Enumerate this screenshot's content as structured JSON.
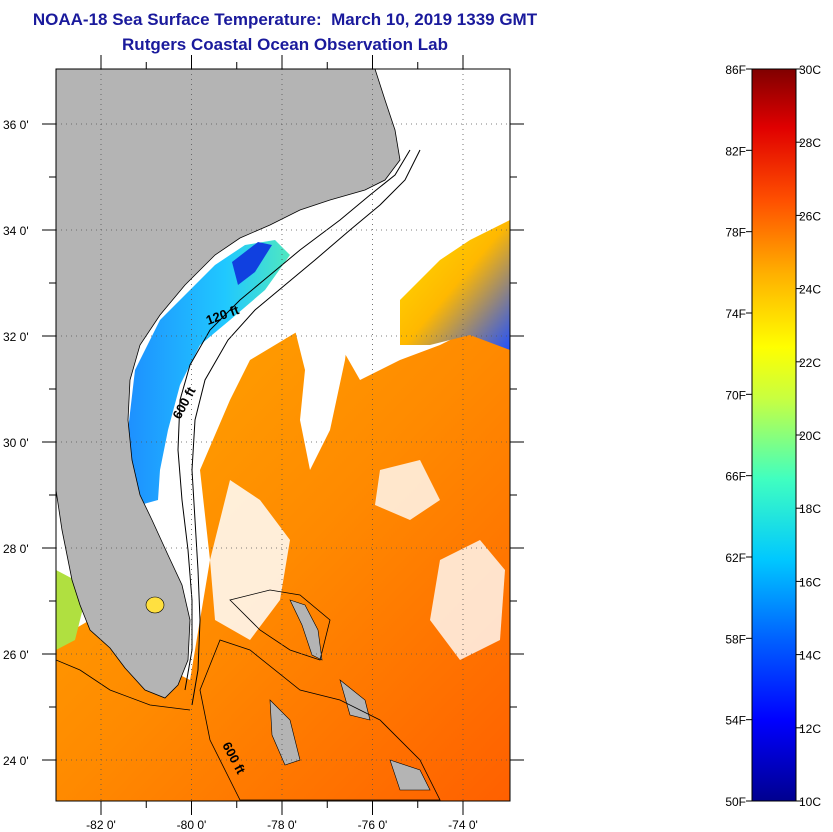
{
  "header": {
    "title": "NOAA-18 Sea Surface Temperature:  March 10, 2019 1339 GMT",
    "subtitle": "Rutgers Coastal Ocean Observation Lab"
  },
  "map": {
    "lat_ticks": [
      "36 0'",
      "34 0'",
      "32 0'",
      "30 0'",
      "28 0'",
      "26 0'",
      "24 0'"
    ],
    "lon_ticks": [
      "-82 0'",
      "-80 0'",
      "-78 0'",
      "-76 0'",
      "-74 0'"
    ],
    "contour_labels": [
      "120 ft",
      "600 ft",
      "600 ft"
    ],
    "colors": {
      "land": "#b4b4b4",
      "cloud": "#ffffff"
    }
  },
  "colorbar": {
    "fahrenheit_labels": [
      "86F",
      "82F",
      "78F",
      "74F",
      "70F",
      "66F",
      "62F",
      "58F",
      "54F",
      "50F"
    ],
    "celsius_labels": [
      "30C",
      "28C",
      "26C",
      "24C",
      "22C",
      "20C",
      "18C",
      "16C",
      "14C",
      "12C",
      "10C"
    ],
    "range_c": [
      10,
      30
    ],
    "range_f": [
      50,
      86
    ]
  }
}
